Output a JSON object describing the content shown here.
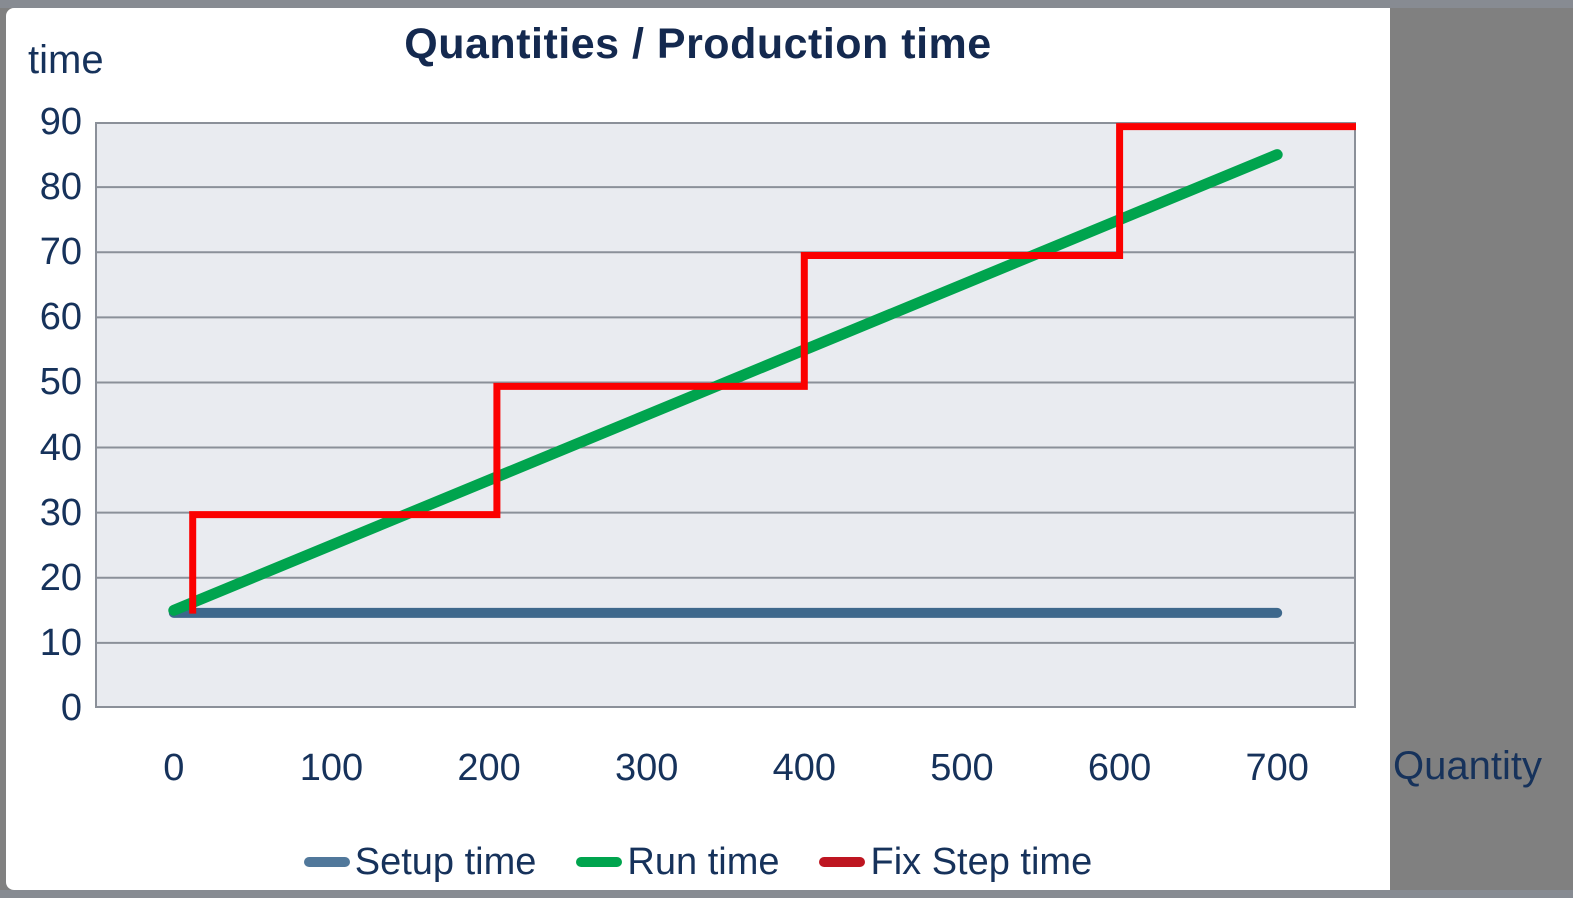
{
  "chart": {
    "title": "Quantities / Production time",
    "y_axis_title": "time",
    "x_axis_title": "Quantity"
  },
  "chart_data": {
    "type": "line",
    "title": "Quantities / Production time",
    "xlabel": "Quantity",
    "ylabel": "time",
    "xlim": [
      -50,
      750
    ],
    "ylim": [
      0,
      90
    ],
    "xticks": [
      0,
      100,
      200,
      300,
      400,
      500,
      600,
      700
    ],
    "yticks": [
      0,
      10,
      20,
      30,
      40,
      50,
      60,
      70,
      80,
      90
    ],
    "grid": "horizontal",
    "plot_background": "#E9EBF0",
    "grid_color": "#8b9099",
    "legend_position": "bottom",
    "series": [
      {
        "name": "Setup time",
        "color": "#3E688C",
        "width": 10,
        "cap": "round",
        "points": [
          [
            0,
            14.6
          ],
          [
            700,
            14.6
          ]
        ]
      },
      {
        "name": "Run time",
        "color": "#00A44E",
        "width": 11,
        "cap": "round",
        "points": [
          [
            0,
            15
          ],
          [
            700,
            85
          ]
        ]
      },
      {
        "name": "Fix Step time",
        "color": "#FB0000",
        "width": 7,
        "cap": "butt",
        "points": [
          [
            12,
            14.5
          ],
          [
            12,
            29.7
          ],
          [
            205,
            29.7
          ],
          [
            205,
            49.4
          ],
          [
            400,
            49.4
          ],
          [
            400,
            69.5
          ],
          [
            600,
            69.5
          ],
          [
            600,
            89.3
          ],
          [
            750,
            89.3
          ]
        ]
      }
    ]
  },
  "legend": {
    "items": [
      {
        "label": "Setup time",
        "color": "#51789B"
      },
      {
        "label": "Run time",
        "color": "#00A44E"
      },
      {
        "label": "Fix Step time",
        "color": "#BE1621"
      }
    ]
  }
}
